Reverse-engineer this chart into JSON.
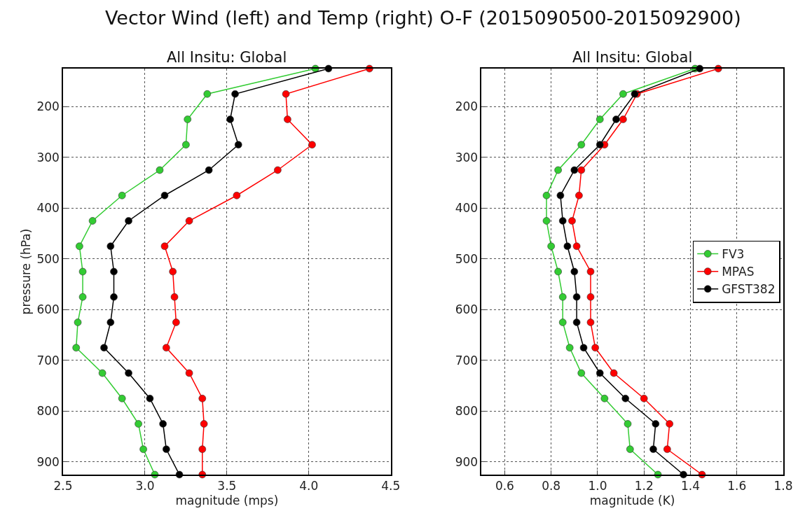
{
  "chart_data": [
    {
      "type": "line",
      "title": "All Insitu: Global",
      "xlabel": "magnitude (mps)",
      "ylabel": "pressure (hPa)",
      "annotations": [
        "Vector Wind (left) and Temp (right) O-F (2015090500-2015092900)"
      ],
      "series": [
        {
          "color": "#33cc33",
          "x": [
            4.04,
            3.38,
            3.26,
            3.25,
            3.09,
            2.86,
            2.68,
            2.6,
            2.62,
            2.62,
            2.59,
            2.58,
            2.74,
            2.86,
            2.96,
            2.99,
            3.06
          ],
          "values": [
            125,
            175,
            225,
            275,
            325,
            375,
            425,
            475,
            525,
            575,
            625,
            675,
            725,
            775,
            825,
            875,
            925
          ]
        },
        {
          "color": "#ff0000",
          "x": [
            4.37,
            3.86,
            3.87,
            4.02,
            3.81,
            3.56,
            3.27,
            3.12,
            3.17,
            3.18,
            3.19,
            3.13,
            3.27,
            3.35,
            3.36,
            3.35,
            3.35
          ],
          "values": [
            125,
            175,
            225,
            275,
            325,
            375,
            425,
            475,
            525,
            575,
            625,
            675,
            725,
            775,
            825,
            875,
            925
          ]
        },
        {
          "color": "#000000",
          "x": [
            4.12,
            3.55,
            3.52,
            3.57,
            3.39,
            3.12,
            2.9,
            2.79,
            2.81,
            2.81,
            2.79,
            2.75,
            2.9,
            3.03,
            3.11,
            3.13,
            3.21
          ],
          "values": [
            125,
            175,
            225,
            275,
            325,
            375,
            425,
            475,
            525,
            575,
            625,
            675,
            725,
            775,
            825,
            875,
            925
          ]
        }
      ],
      "xlim": [
        2.5,
        4.5
      ],
      "xticks": [
        2.5,
        {
          "value": 3,
          "label": "3.0"
        },
        3.5,
        {
          "value": 4,
          "label": "4.0"
        },
        4.5
      ],
      "ylim": [
        925,
        125
      ],
      "yticks": [
        200,
        300,
        400,
        500,
        600,
        700,
        800,
        900
      ],
      "grid": true,
      "marker": "circle",
      "legend": false
    },
    {
      "type": "line",
      "title": "All Insitu: Global",
      "xlabel": "magnitude (K)",
      "series": [
        {
          "name": "FV3",
          "color": "#33cc33",
          "x": [
            1.42,
            1.11,
            1.01,
            0.93,
            0.83,
            0.78,
            0.78,
            0.8,
            0.83,
            0.85,
            0.85,
            0.88,
            0.93,
            1.03,
            1.13,
            1.14,
            1.26
          ],
          "values": [
            125,
            175,
            225,
            275,
            325,
            375,
            425,
            475,
            525,
            575,
            625,
            675,
            725,
            775,
            825,
            875,
            925
          ]
        },
        {
          "name": "MPAS",
          "color": "#ff0000",
          "x": [
            1.52,
            1.17,
            1.11,
            1.03,
            0.93,
            0.92,
            0.89,
            0.91,
            0.97,
            0.97,
            0.97,
            0.99,
            1.07,
            1.2,
            1.31,
            1.3,
            1.45
          ],
          "values": [
            125,
            175,
            225,
            275,
            325,
            375,
            425,
            475,
            525,
            575,
            625,
            675,
            725,
            775,
            825,
            875,
            925
          ]
        },
        {
          "name": "GFST382",
          "color": "#000000",
          "x": [
            1.44,
            1.16,
            1.08,
            1.01,
            0.9,
            0.84,
            0.85,
            0.87,
            0.9,
            0.91,
            0.91,
            0.94,
            1.01,
            1.12,
            1.25,
            1.24,
            1.37
          ],
          "values": [
            125,
            175,
            225,
            275,
            325,
            375,
            425,
            475,
            525,
            575,
            625,
            675,
            725,
            775,
            825,
            875,
            925
          ]
        }
      ],
      "xlim": [
        0.5,
        1.8
      ],
      "xticks": [
        0.6,
        0.8,
        {
          "value": 1,
          "label": "1.0"
        },
        1.2,
        1.4,
        1.6,
        1.8
      ],
      "ylim": [
        925,
        125
      ],
      "yticks": [
        200,
        300,
        400,
        500,
        600,
        700,
        800,
        900
      ],
      "grid": true,
      "marker": "circle",
      "legend": "right"
    }
  ]
}
